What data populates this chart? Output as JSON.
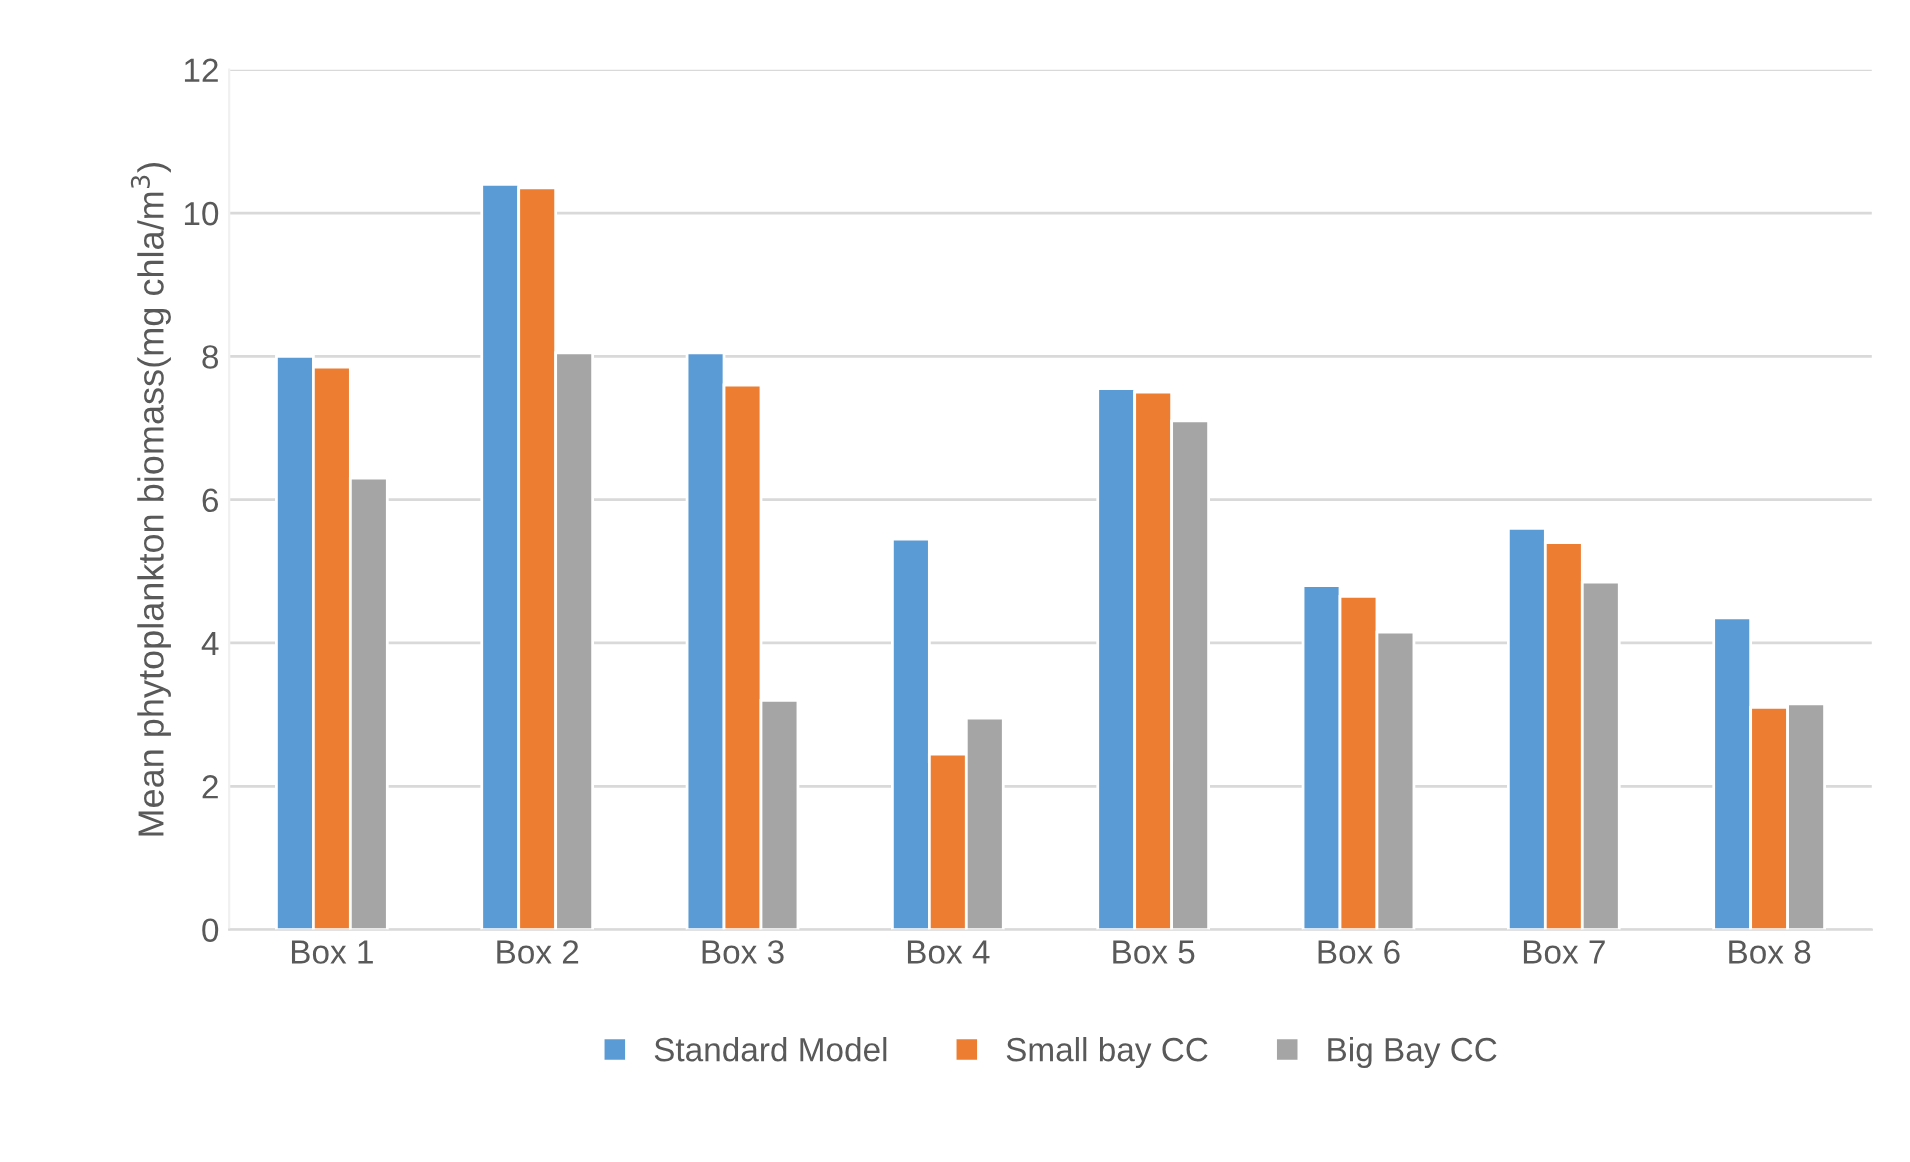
{
  "chart_data": {
    "type": "bar",
    "ylabel": "Mean phytoplankton biomass(mg chla/m$^{3}$)",
    "categories": [
      "Box 1",
      "Box 2",
      "Box 3",
      "Box 4",
      "Box 5",
      "Box 6",
      "Box 7",
      "Box 8"
    ],
    "series": [
      {
        "name": "Standard Model",
        "color": "#5b9bd5",
        "values": [
          8.0,
          10.4,
          8.05,
          5.45,
          7.55,
          4.8,
          5.6,
          4.35
        ]
      },
      {
        "name": "Small bay CC",
        "color": "#ed7d31",
        "values": [
          7.85,
          10.35,
          7.6,
          2.45,
          7.5,
          4.65,
          5.4,
          3.1
        ]
      },
      {
        "name": "Big Bay CC",
        "color": "#a5a5a5",
        "values": [
          6.3,
          8.05,
          3.2,
          2.95,
          7.1,
          4.15,
          4.85,
          3.15
        ]
      }
    ],
    "ylim": [
      0,
      12
    ],
    "yticks": [
      0,
      2,
      4,
      6,
      8,
      10,
      12
    ],
    "grid": "y",
    "legend": "bottom"
  }
}
